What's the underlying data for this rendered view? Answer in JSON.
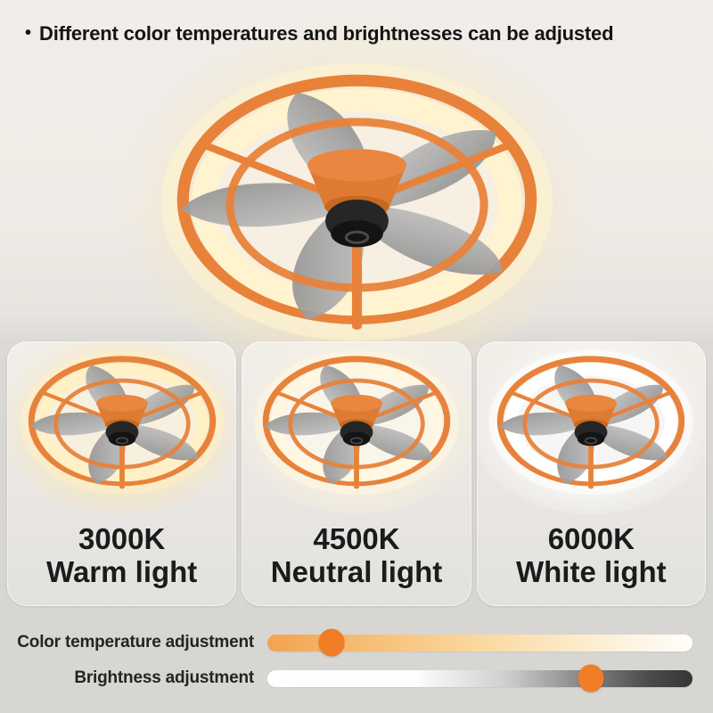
{
  "headline": {
    "bullet": "•",
    "text": "Different color temperatures and brightnesses can be adjusted"
  },
  "product": {
    "description": "ring ceiling fan light",
    "ring_color": "#E8823A",
    "led_color": "#FFF3D0",
    "glow_color": "#F7E8C2",
    "inner_color": "#F6EFE2",
    "blade_color": "#9A9A9A",
    "motor_color": "#222222"
  },
  "panels": [
    {
      "temperature": "3000K",
      "label": "Warm light",
      "led_color": "#FFF0C6",
      "glow_color": "#F8E7BA",
      "inner_color": "#F8F0DE"
    },
    {
      "temperature": "4500K",
      "label": "Neutral light",
      "led_color": "#FFF7E2",
      "glow_color": "#FBF2DC",
      "inner_color": "#FAF5EA"
    },
    {
      "temperature": "6000K",
      "label": "White light",
      "led_color": "#FFFFFF",
      "glow_color": "#FCFCFB",
      "inner_color": "#F7F6F4"
    }
  ],
  "sliders": [
    {
      "label": "Color temperature adjustment",
      "value_percent": 15,
      "knob_color": "#F07D26",
      "track_style": "warm-gradient"
    },
    {
      "label": "Brightness adjustment",
      "value_percent": 76,
      "knob_color": "#F07D26",
      "track_style": "brightness-gradient"
    }
  ]
}
